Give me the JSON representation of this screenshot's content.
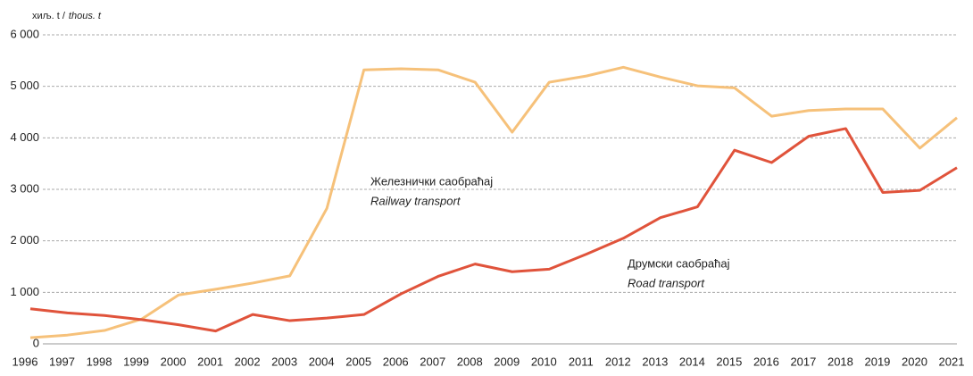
{
  "chart_data": {
    "type": "line",
    "y_label": "хиљ. t /",
    "y_label_en": "thous. t",
    "categories": [
      1996,
      1997,
      1998,
      1999,
      2000,
      2001,
      2002,
      2003,
      2004,
      2005,
      2006,
      2007,
      2008,
      2009,
      2010,
      2011,
      2012,
      2013,
      2014,
      2015,
      2016,
      2017,
      2018,
      2019,
      2020,
      2021
    ],
    "series": [
      {
        "name": "Железнички саобраћај",
        "name_en": "Railway transport",
        "color": "#f6c17a",
        "values": [
          120,
          170,
          260,
          480,
          950,
          1060,
          1180,
          1320,
          2630,
          5320,
          5340,
          5320,
          5080,
          4110,
          5080,
          5200,
          5370,
          5180,
          5010,
          4970,
          4420,
          4530,
          4560,
          4560,
          3800,
          4390
        ]
      },
      {
        "name": "Друмски саобраћај",
        "name_en": "Road transport",
        "color": "#e0533b",
        "values": [
          680,
          600,
          550,
          470,
          370,
          250,
          570,
          450,
          500,
          570,
          970,
          1310,
          1550,
          1400,
          1450,
          1740,
          2050,
          2450,
          2660,
          3760,
          3520,
          4030,
          4180,
          2940,
          2980,
          3420
        ]
      }
    ],
    "ylim": [
      0,
      6000
    ],
    "yticks": [
      {
        "value": 0,
        "label": "0"
      },
      {
        "value": 1000,
        "label": "1 000"
      },
      {
        "value": 2000,
        "label": "2 000"
      },
      {
        "value": 3000,
        "label": "3 000"
      },
      {
        "value": 4000,
        "label": "4 000"
      },
      {
        "value": 5000,
        "label": "5 000"
      },
      {
        "value": 6000,
        "label": "6 000"
      }
    ],
    "grid": true
  }
}
